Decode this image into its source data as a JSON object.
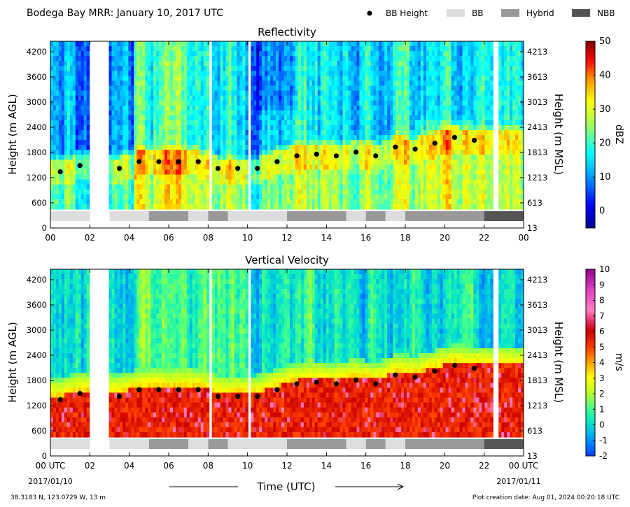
{
  "header": {
    "title": "Bodega Bay MRR:  January 10, 2017 UTC",
    "legend": [
      {
        "label": "BB Height",
        "kind": "dot",
        "color": "#000000"
      },
      {
        "label": "BB",
        "kind": "swatch",
        "color": "#dddddd"
      },
      {
        "label": "Hybrid",
        "kind": "swatch",
        "color": "#999999"
      },
      {
        "label": "NBB",
        "kind": "swatch",
        "color": "#555555"
      }
    ]
  },
  "footer": {
    "location": "38.3183 N, 123.0729 W, 13 m",
    "creation": "Plot creation date: Aug 01, 2024 00:20:18 UTC",
    "xlabel": "Time (UTC)",
    "start_date": "2017/01/10",
    "end_date": "2017/01/11"
  },
  "chart_data": [
    {
      "type": "heatmap",
      "title": "Reflectivity",
      "ylabel": "Height (m AGL)",
      "ylabel_right": "Height (m MSL)",
      "xlim": [
        0,
        24
      ],
      "ylim": [
        0,
        4450
      ],
      "xticks": [
        "00",
        "02",
        "04",
        "06",
        "08",
        "10",
        "12",
        "14",
        "16",
        "18",
        "20",
        "22",
        "00"
      ],
      "yticks_left": [
        "0",
        "600",
        "1200",
        "1800",
        "2400",
        "3000",
        "3600",
        "4200"
      ],
      "yticks_right": [
        "13",
        "613",
        "1213",
        "1813",
        "2413",
        "3013",
        "3613",
        "4213"
      ],
      "colorbar": {
        "label": "dBZ",
        "range": [
          -5,
          50
        ],
        "ticks": [
          "0",
          "10",
          "20",
          "30",
          "40",
          "50"
        ]
      },
      "bb_height": {
        "x": [
          0.5,
          1.5,
          3.5,
          4.5,
          5.5,
          6.5,
          7.5,
          8.5,
          9.5,
          10.5,
          11.5,
          12.5,
          13.5,
          14.5,
          15.5,
          16.5,
          17.5,
          18.5,
          19.5,
          20.5,
          21.5
        ],
        "y": [
          1340,
          1490,
          1420,
          1580,
          1580,
          1580,
          1580,
          1420,
          1420,
          1420,
          1580,
          1720,
          1760,
          1720,
          1810,
          1720,
          1930,
          1880,
          2020,
          2160,
          2090
        ]
      },
      "bb_class": [
        {
          "start": 0,
          "end": 2,
          "class": "BB"
        },
        {
          "start": 3,
          "end": 5,
          "class": "BB"
        },
        {
          "start": 5,
          "end": 7,
          "class": "Hybrid"
        },
        {
          "start": 7,
          "end": 8,
          "class": "BB"
        },
        {
          "start": 8,
          "end": 9,
          "class": "Hybrid"
        },
        {
          "start": 9,
          "end": 12,
          "class": "BB"
        },
        {
          "start": 12,
          "end": 15,
          "class": "Hybrid"
        },
        {
          "start": 15,
          "end": 16,
          "class": "BB"
        },
        {
          "start": 16,
          "end": 17,
          "class": "Hybrid"
        },
        {
          "start": 17,
          "end": 18,
          "class": "BB"
        },
        {
          "start": 18,
          "end": 22,
          "class": "Hybrid"
        },
        {
          "start": 22,
          "end": 24,
          "class": "NBB"
        }
      ]
    },
    {
      "type": "heatmap",
      "title": "Vertical Velocity",
      "ylabel": "Height (m AGL)",
      "ylabel_right": "Height (m MSL)",
      "xlim": [
        0,
        24
      ],
      "ylim": [
        0,
        4450
      ],
      "xticks": [
        "00 UTC",
        "02",
        "04",
        "06",
        "08",
        "10",
        "12",
        "14",
        "16",
        "18",
        "20",
        "22",
        "00 UTC"
      ],
      "yticks_left": [
        "0",
        "600",
        "1200",
        "1800",
        "2400",
        "3000",
        "3600",
        "4200"
      ],
      "yticks_right": [
        "13",
        "613",
        "1213",
        "1813",
        "2413",
        "3013",
        "3613",
        "4213"
      ],
      "colorbar": {
        "label": "m/s",
        "range": [
          -2,
          10
        ],
        "ticks": [
          "-2",
          "-1",
          "0",
          "1",
          "2",
          "3",
          "4",
          "5",
          "6",
          "7",
          "8",
          "9",
          "10"
        ]
      },
      "bb_height": {
        "x": [
          0.5,
          1.5,
          3.5,
          4.5,
          5.5,
          6.5,
          7.5,
          8.5,
          9.5,
          10.5,
          11.5,
          12.5,
          13.5,
          14.5,
          15.5,
          16.5,
          17.5,
          18.5,
          19.5,
          20.5,
          21.5
        ],
        "y": [
          1340,
          1490,
          1420,
          1580,
          1580,
          1580,
          1580,
          1420,
          1420,
          1420,
          1580,
          1720,
          1760,
          1720,
          1810,
          1720,
          1930,
          1880,
          2020,
          2160,
          2090
        ]
      },
      "bb_class": [
        {
          "start": 0,
          "end": 2,
          "class": "BB"
        },
        {
          "start": 3,
          "end": 5,
          "class": "BB"
        },
        {
          "start": 5,
          "end": 7,
          "class": "Hybrid"
        },
        {
          "start": 7,
          "end": 8,
          "class": "BB"
        },
        {
          "start": 8,
          "end": 9,
          "class": "Hybrid"
        },
        {
          "start": 9,
          "end": 12,
          "class": "BB"
        },
        {
          "start": 12,
          "end": 15,
          "class": "Hybrid"
        },
        {
          "start": 15,
          "end": 16,
          "class": "BB"
        },
        {
          "start": 16,
          "end": 17,
          "class": "Hybrid"
        },
        {
          "start": 17,
          "end": 18,
          "class": "BB"
        },
        {
          "start": 18,
          "end": 22,
          "class": "Hybrid"
        },
        {
          "start": 22,
          "end": 24,
          "class": "NBB"
        }
      ]
    }
  ]
}
